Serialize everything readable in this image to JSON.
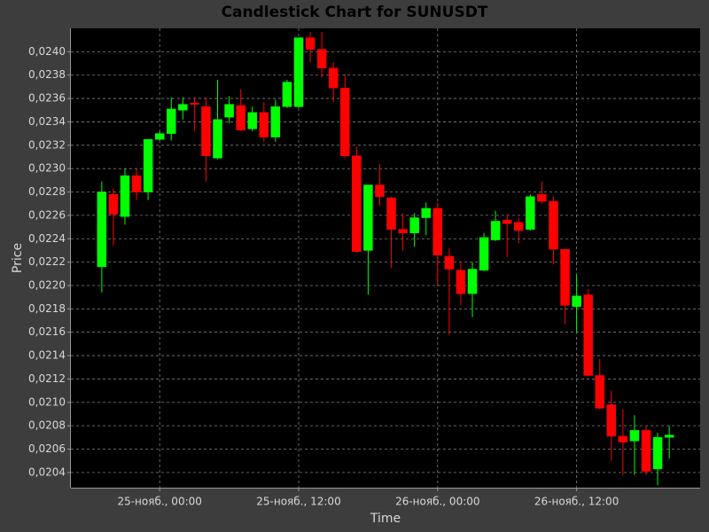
{
  "chart_data": {
    "type": "candlestick",
    "title": "Candlestick Chart for SUNUSDT",
    "x_label": "Time",
    "y_label": "Price",
    "up_color": "#00ff00",
    "down_color": "#ff0000",
    "grid": true,
    "x": [
      "11-24 19:00",
      "11-24 20:00",
      "11-24 21:00",
      "11-24 22:00",
      "11-24 23:00",
      "11-25 00:00",
      "11-25 01:00",
      "11-25 02:00",
      "11-25 03:00",
      "11-25 04:00",
      "11-25 05:00",
      "11-25 06:00",
      "11-25 07:00",
      "11-25 08:00",
      "11-25 09:00",
      "11-25 10:00",
      "11-25 11:00",
      "11-25 12:00",
      "11-25 13:00",
      "11-25 14:00",
      "11-25 15:00",
      "11-25 16:00",
      "11-25 17:00",
      "11-25 18:00",
      "11-25 19:00",
      "11-25 20:00",
      "11-25 21:00",
      "11-25 22:00",
      "11-25 23:00",
      "11-26 00:00",
      "11-26 01:00",
      "11-26 02:00",
      "11-26 03:00",
      "11-26 04:00",
      "11-26 05:00",
      "11-26 06:00",
      "11-26 07:00",
      "11-26 08:00",
      "11-26 09:00",
      "11-26 10:00",
      "11-26 11:00",
      "11-26 12:00",
      "11-26 13:00",
      "11-26 14:00",
      "11-26 15:00",
      "11-26 16:00",
      "11-26 17:00",
      "11-26 18:00",
      "11-26 19:00",
      "11-26 20:00"
    ],
    "open": [
      0.02216,
      0.02278,
      0.02259,
      0.02294,
      0.0228,
      0.02325,
      0.0233,
      0.0235,
      0.02356,
      0.02353,
      0.02309,
      0.02344,
      0.02354,
      0.02334,
      0.02348,
      0.02327,
      0.02353,
      0.02353,
      0.02412,
      0.02402,
      0.02386,
      0.02369,
      0.02311,
      0.0223,
      0.02286,
      0.02275,
      0.02248,
      0.02245,
      0.02258,
      0.02266,
      0.02225,
      0.02213,
      0.02193,
      0.02213,
      0.02239,
      0.02256,
      0.02254,
      0.02248,
      0.02278,
      0.02272,
      0.02231,
      0.02182,
      0.02192,
      0.02123,
      0.02098,
      0.02071,
      0.02067,
      0.02076,
      0.02043,
      0.0207
    ],
    "high": [
      0.02289,
      0.02283,
      0.023,
      0.023,
      0.02325,
      0.02332,
      0.02361,
      0.02361,
      0.02361,
      0.02361,
      0.02376,
      0.02362,
      0.02368,
      0.02353,
      0.02357,
      0.02359,
      0.02376,
      0.02412,
      0.02417,
      0.02417,
      0.02391,
      0.02381,
      0.02319,
      0.02286,
      0.02304,
      0.02276,
      0.02262,
      0.02262,
      0.02271,
      0.02271,
      0.02232,
      0.0222,
      0.0222,
      0.02245,
      0.02264,
      0.02261,
      0.02258,
      0.02278,
      0.02289,
      0.02276,
      0.02231,
      0.02209,
      0.02197,
      0.02137,
      0.0211,
      0.02094,
      0.02089,
      0.0208,
      0.02074,
      0.0208
    ],
    "low": [
      0.02194,
      0.02234,
      0.02252,
      0.02273,
      0.02273,
      0.02324,
      0.02324,
      0.02342,
      0.02332,
      0.02289,
      0.02308,
      0.02339,
      0.02332,
      0.02332,
      0.02323,
      0.02323,
      0.02352,
      0.02352,
      0.02391,
      0.02378,
      0.02357,
      0.02309,
      0.02228,
      0.02192,
      0.02268,
      0.02215,
      0.0223,
      0.02233,
      0.02243,
      0.02201,
      0.02158,
      0.02183,
      0.02173,
      0.02212,
      0.02238,
      0.02224,
      0.02236,
      0.02247,
      0.0227,
      0.02218,
      0.02167,
      0.0216,
      0.02122,
      0.02094,
      0.0205,
      0.02038,
      0.02038,
      0.02038,
      0.02029,
      0.02052
    ],
    "close": [
      0.0228,
      0.02261,
      0.02294,
      0.0228,
      0.02325,
      0.0233,
      0.02351,
      0.02355,
      0.02355,
      0.02311,
      0.02342,
      0.02355,
      0.02333,
      0.02348,
      0.02327,
      0.02353,
      0.02374,
      0.02412,
      0.02402,
      0.02386,
      0.02369,
      0.02311,
      0.02229,
      0.02286,
      0.02276,
      0.02248,
      0.02245,
      0.02258,
      0.02266,
      0.02226,
      0.02214,
      0.02193,
      0.02214,
      0.02241,
      0.02255,
      0.02253,
      0.02247,
      0.02276,
      0.02272,
      0.02231,
      0.02183,
      0.02191,
      0.02123,
      0.02095,
      0.02071,
      0.02066,
      0.02076,
      0.02041,
      0.0207,
      0.02072
    ],
    "xlim": [
      "11-24 16:20",
      "11-26 22:40"
    ],
    "xticks": [
      {
        "value": "11-25 00:00",
        "label": "25-нояб., 00:00"
      },
      {
        "value": "11-25 12:00",
        "label": "25-нояб., 12:00"
      },
      {
        "value": "11-26 00:00",
        "label": "26-нояб., 00:00"
      },
      {
        "value": "11-26 12:00",
        "label": "26-нояб., 12:00"
      }
    ],
    "ylim": [
      0.02027,
      0.0242
    ],
    "yticks": [
      {
        "value": 0.0204,
        "label": "0,0204"
      },
      {
        "value": 0.0206,
        "label": "0,0206"
      },
      {
        "value": 0.0208,
        "label": "0,0208"
      },
      {
        "value": 0.021,
        "label": "0,0210"
      },
      {
        "value": 0.0212,
        "label": "0,0212"
      },
      {
        "value": 0.0214,
        "label": "0,0214"
      },
      {
        "value": 0.0216,
        "label": "0,0216"
      },
      {
        "value": 0.0218,
        "label": "0,0218"
      },
      {
        "value": 0.022,
        "label": "0,0220"
      },
      {
        "value": 0.0222,
        "label": "0,0222"
      },
      {
        "value": 0.0224,
        "label": "0,0224"
      },
      {
        "value": 0.0226,
        "label": "0,0226"
      },
      {
        "value": 0.0228,
        "label": "0,0228"
      },
      {
        "value": 0.023,
        "label": "0,0230"
      },
      {
        "value": 0.0232,
        "label": "0,0232"
      },
      {
        "value": 0.0234,
        "label": "0,0234"
      },
      {
        "value": 0.0236,
        "label": "0,0236"
      },
      {
        "value": 0.0238,
        "label": "0,0238"
      },
      {
        "value": 0.024,
        "label": "0,0240"
      }
    ]
  }
}
